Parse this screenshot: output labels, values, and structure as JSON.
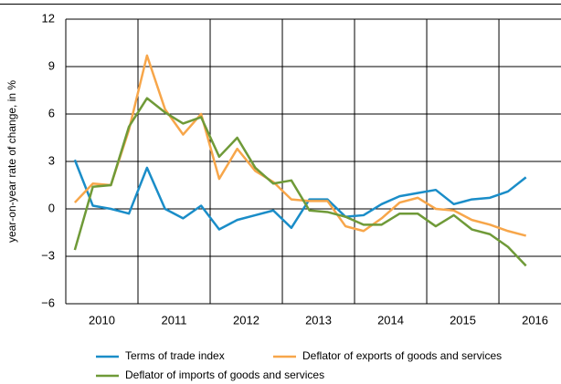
{
  "chart_data": {
    "type": "line",
    "y_label": "year-on-year rate of change, in %",
    "x": [
      2010.125,
      2010.375,
      2010.625,
      2010.875,
      2011.125,
      2011.375,
      2011.625,
      2011.875,
      2012.125,
      2012.375,
      2012.625,
      2012.875,
      2013.125,
      2013.375,
      2013.625,
      2013.875,
      2014.125,
      2014.375,
      2014.625,
      2014.875,
      2015.125,
      2015.375,
      2015.625,
      2015.875,
      2016.125,
      2016.375
    ],
    "series": [
      {
        "name": "Terms of trade index",
        "color": "#1a8dc8",
        "values": [
          3.1,
          0.2,
          0.0,
          -0.3,
          2.6,
          0.0,
          -0.6,
          0.2,
          -1.3,
          -0.7,
          -0.4,
          -0.1,
          -1.2,
          0.6,
          0.6,
          -0.5,
          -0.4,
          0.3,
          0.8,
          1.0,
          1.2,
          0.3,
          0.6,
          0.7,
          1.1,
          2.0
        ]
      },
      {
        "name": "Deflator of exports of goods and services",
        "color": "#f7a64a",
        "values": [
          0.4,
          1.6,
          1.5,
          5.0,
          9.7,
          6.3,
          4.7,
          6.0,
          1.9,
          3.8,
          2.4,
          1.7,
          0.6,
          0.5,
          0.5,
          -1.1,
          -1.4,
          -0.6,
          0.4,
          0.7,
          0.0,
          -0.1,
          -0.7,
          -1.0,
          -1.4,
          -1.7
        ]
      },
      {
        "name": "Deflator of imports of goods and services",
        "color": "#6f9a38",
        "values": [
          -2.6,
          1.4,
          1.5,
          5.2,
          7.0,
          6.1,
          5.4,
          5.8,
          3.3,
          4.5,
          2.6,
          1.6,
          1.8,
          -0.1,
          -0.2,
          -0.5,
          -1.0,
          -1.0,
          -0.3,
          -0.3,
          -1.1,
          -0.4,
          -1.3,
          -1.6,
          -2.4,
          -3.6
        ]
      }
    ],
    "xlim": [
      2010,
      2016.86
    ],
    "xticks": [
      {
        "value": 2010.5,
        "label": "2010"
      },
      {
        "value": 2011.5,
        "label": "2011"
      },
      {
        "value": 2012.5,
        "label": "2012"
      },
      {
        "value": 2013.5,
        "label": "2013"
      },
      {
        "value": 2014.5,
        "label": "2014"
      },
      {
        "value": 2015.5,
        "label": "2015"
      },
      {
        "value": 2016.5,
        "label": "2016"
      }
    ],
    "xgrid": [
      2011,
      2012,
      2013,
      2014,
      2015,
      2016
    ],
    "ylim": [
      -6,
      12
    ],
    "yticks": [
      {
        "value": -6,
        "label": "−6"
      },
      {
        "value": -3,
        "label": "−3"
      },
      0,
      3,
      6,
      9,
      12
    ],
    "grid": true
  }
}
